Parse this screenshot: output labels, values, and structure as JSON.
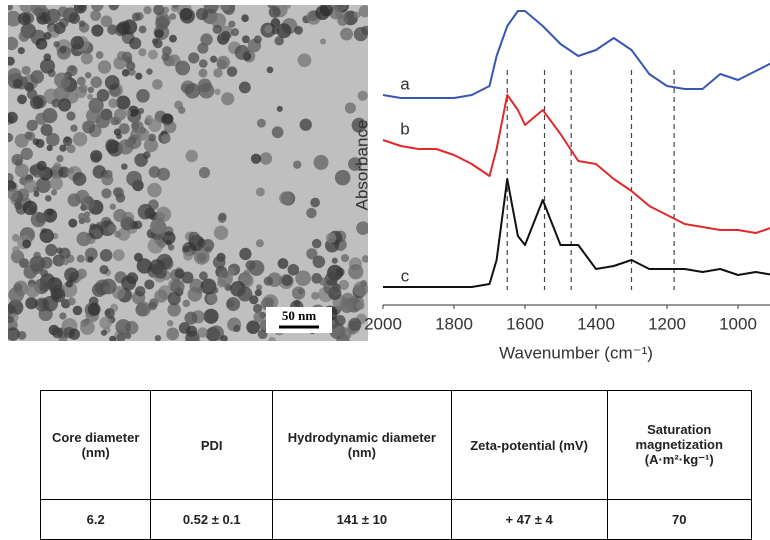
{
  "tem_image": {
    "scale_bar": "50 nm"
  },
  "chart_data": {
    "type": "line",
    "x_label": "Wavenumber (cm⁻¹)",
    "y_label": "Absorbance",
    "x": [
      2000,
      1950,
      1900,
      1850,
      1800,
      1750,
      1700,
      1680,
      1650,
      1620,
      1600,
      1550,
      1500,
      1450,
      1400,
      1350,
      1300,
      1250,
      1200,
      1150,
      1100,
      1050,
      1000,
      950,
      900
    ],
    "xlim": [
      2000,
      900
    ],
    "ylim": [
      0,
      1
    ],
    "xticks": [
      2000,
      1800,
      1600,
      1400,
      1200,
      1000
    ],
    "reference_lines": [
      1650,
      1545,
      1470,
      1300,
      1180
    ],
    "series": [
      {
        "name": "a",
        "color": "#3a56b4",
        "values": [
          0.7,
          0.69,
          0.69,
          0.69,
          0.69,
          0.7,
          0.73,
          0.83,
          0.93,
          0.98,
          0.98,
          0.93,
          0.87,
          0.83,
          0.85,
          0.89,
          0.85,
          0.77,
          0.73,
          0.72,
          0.72,
          0.77,
          0.75,
          0.78,
          0.81
        ]
      },
      {
        "name": "b",
        "color": "#e0292b",
        "values": [
          0.55,
          0.53,
          0.52,
          0.52,
          0.5,
          0.47,
          0.43,
          0.52,
          0.7,
          0.65,
          0.6,
          0.65,
          0.57,
          0.48,
          0.47,
          0.42,
          0.38,
          0.33,
          0.3,
          0.27,
          0.26,
          0.25,
          0.25,
          0.24,
          0.26
        ]
      },
      {
        "name": "c",
        "color": "#111111",
        "values": [
          0.06,
          0.06,
          0.06,
          0.06,
          0.06,
          0.06,
          0.07,
          0.15,
          0.42,
          0.23,
          0.2,
          0.35,
          0.2,
          0.2,
          0.12,
          0.13,
          0.15,
          0.12,
          0.12,
          0.12,
          0.11,
          0.12,
          0.1,
          0.11,
          0.1
        ]
      }
    ]
  },
  "table": {
    "header": [
      "Core diameter (nm)",
      "PDI",
      "Hydrodynamic diameter (nm)",
      "Zeta-potential (mV)",
      "Saturation magnetization (A·m²·kg⁻¹)"
    ],
    "rows": [
      [
        "6.2",
        "0.52 ± 0.1",
        "141 ± 10",
        "+ 47 ± 4",
        "70"
      ]
    ]
  }
}
